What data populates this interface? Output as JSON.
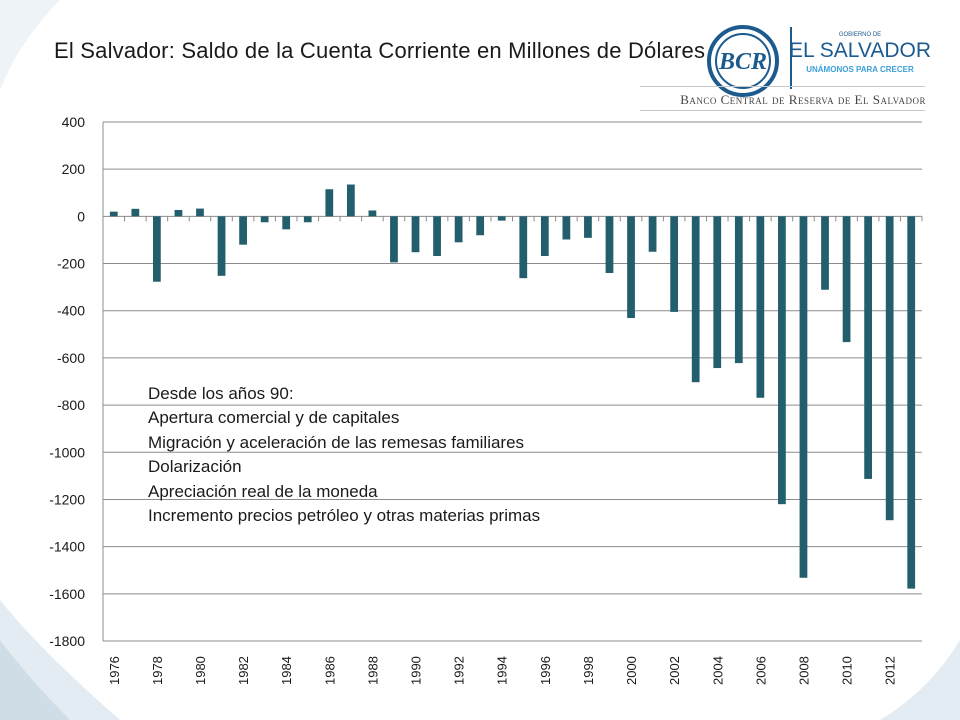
{
  "slide": {
    "title": "El Salvador: Saldo de la Cuenta Corriente en Millones de Dólares"
  },
  "logo": {
    "bcr_text": "BCR",
    "gov_small": "GOBIERNO DE",
    "country": "EL SALVADOR",
    "slogan": "UNÁMONOS PARA CRECER",
    "bank_name": "Banco Central de Reserva de El Salvador"
  },
  "annotation": {
    "lines": [
      "Desde los años 90:",
      "Apertura comercial y de capitales",
      "Migración y aceleración de las remesas familiares",
      "Dolarización",
      "Apreciación real de la moneda",
      "Incremento precios petróleo y otras materias primas"
    ]
  },
  "colors": {
    "bar": "#235e6c",
    "grid": "#8c8c8c",
    "swoosh": "#dde8ef"
  },
  "chart_data": {
    "type": "bar",
    "title": "El Salvador: Saldo de la Cuenta Corriente en Millones de Dólares",
    "xlabel": "",
    "ylabel": "",
    "ylim": [
      -1800,
      400
    ],
    "yticks": [
      400,
      200,
      0,
      -200,
      -400,
      -600,
      -800,
      -1000,
      -1200,
      -1400,
      -1600,
      -1800
    ],
    "grid": true,
    "categories": [
      "1976",
      "1977",
      "1978",
      "1979",
      "1980",
      "1981",
      "1982",
      "1983",
      "1984",
      "1985",
      "1986",
      "1987",
      "1988",
      "1989",
      "1990",
      "1991",
      "1992",
      "1993",
      "1994",
      "1995",
      "1996",
      "1997",
      "1998",
      "1999",
      "2000",
      "2001",
      "2002",
      "2003",
      "2004",
      "2005",
      "2006",
      "2007",
      "2008",
      "2009",
      "2010",
      "2011",
      "2012",
      "2013"
    ],
    "xtick_labels": [
      "1976",
      "1978",
      "1980",
      "1982",
      "1984",
      "1986",
      "1988",
      "1990",
      "1992",
      "1994",
      "1996",
      "1998",
      "2000",
      "2002",
      "2004",
      "2006",
      "2008",
      "2010",
      "2012"
    ],
    "series": [
      {
        "name": "Saldo de la Cuenta Corriente",
        "values": [
          20,
          32,
          -277,
          27,
          33,
          -252,
          -120,
          -25,
          -55,
          -25,
          115,
          135,
          25,
          -195,
          -152,
          -168,
          -110,
          -80,
          -18,
          -262,
          -168,
          -98,
          -91,
          -240,
          -431,
          -150,
          -405,
          -703,
          -643,
          -622,
          -769,
          -1220,
          -1532,
          -311,
          -533,
          -1113,
          -1288,
          -1578
        ]
      }
    ]
  }
}
